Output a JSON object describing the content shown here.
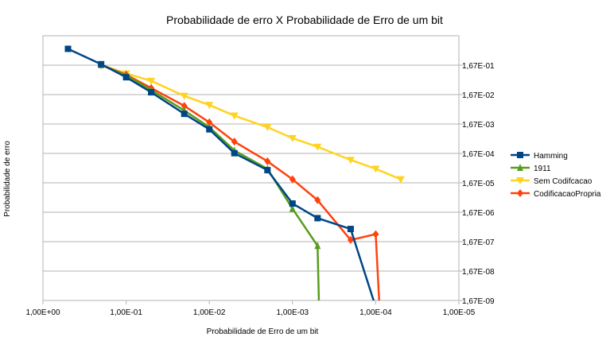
{
  "chart_data": {
    "type": "line",
    "title": "Probabilidade de erro X Probabilidade de Erro de um bit",
    "xlabel": "Probabilidade de Erro de um bit",
    "ylabel": "Probabilidade de erro",
    "x_scale": "log",
    "x_reversed": true,
    "y_scale": "log",
    "y_axis_position": "right",
    "xlim": [
      1,
      1e-05
    ],
    "ylim": [
      1.67e-09,
      1.67
    ],
    "x_tick_labels": [
      "1,00E+00",
      "1,00E-01",
      "1,00E-02",
      "1,00E-03",
      "1,00E-04",
      "1,00E-05"
    ],
    "y_tick_labels": [
      "1,67E-01",
      "1,67E-02",
      "1,67E-03",
      "1,67E-04",
      "1,67E-05",
      "1,67E-06",
      "1,67E-07",
      "1,67E-08",
      "1,67E-09"
    ],
    "grid": "horizontal",
    "legend_position": "right",
    "series": [
      {
        "name": "Hamming",
        "color": "#004586",
        "marker": "square",
        "x": [
          0.5,
          0.2,
          0.1,
          0.05,
          0.02,
          0.01,
          0.005,
          0.002,
          0.001,
          0.0005,
          0.0002,
          0.0001
        ],
        "y": [
          0.6,
          0.18,
          0.065,
          0.02,
          0.0037,
          0.0011,
          0.00017,
          4.5e-05,
          3.3e-06,
          1.05e-06,
          4.5e-07,
          1e-09
        ]
      },
      {
        "name": "1911",
        "color": "#579d1c",
        "marker": "triangle-up",
        "x": [
          0.2,
          0.1,
          0.05,
          0.02,
          0.01,
          0.005,
          0.002,
          0.001,
          0.0005,
          0.00048
        ],
        "y": [
          0.17,
          0.075,
          0.024,
          0.0048,
          0.0013,
          0.00021,
          5e-05,
          2.2e-06,
          1.2e-07,
          1e-09
        ]
      },
      {
        "name": "Sem Codifcacao",
        "color": "#ffd320",
        "marker": "triangle-down",
        "x": [
          0.2,
          0.1,
          0.05,
          0.02,
          0.01,
          0.005,
          0.002,
          0.001,
          0.0005,
          0.0002,
          0.0001,
          5e-05
        ],
        "y": [
          0.17,
          0.087,
          0.049,
          0.015,
          0.0074,
          0.0032,
          0.0013,
          0.00055,
          0.00028,
          0.0001,
          5e-05,
          2.2e-05
        ]
      },
      {
        "name": "CodificacaoPropria",
        "color": "#ff420e",
        "marker": "diamond",
        "x": [
          0.2,
          0.1,
          0.05,
          0.02,
          0.01,
          0.005,
          0.002,
          0.001,
          0.0005,
          0.0002,
          0.0001,
          9e-05
        ],
        "y": [
          0.17,
          0.08,
          0.028,
          0.0069,
          0.0019,
          0.00042,
          9e-05,
          2.2e-05,
          4.3e-06,
          1.9e-07,
          3e-07,
          1e-09
        ]
      }
    ]
  }
}
